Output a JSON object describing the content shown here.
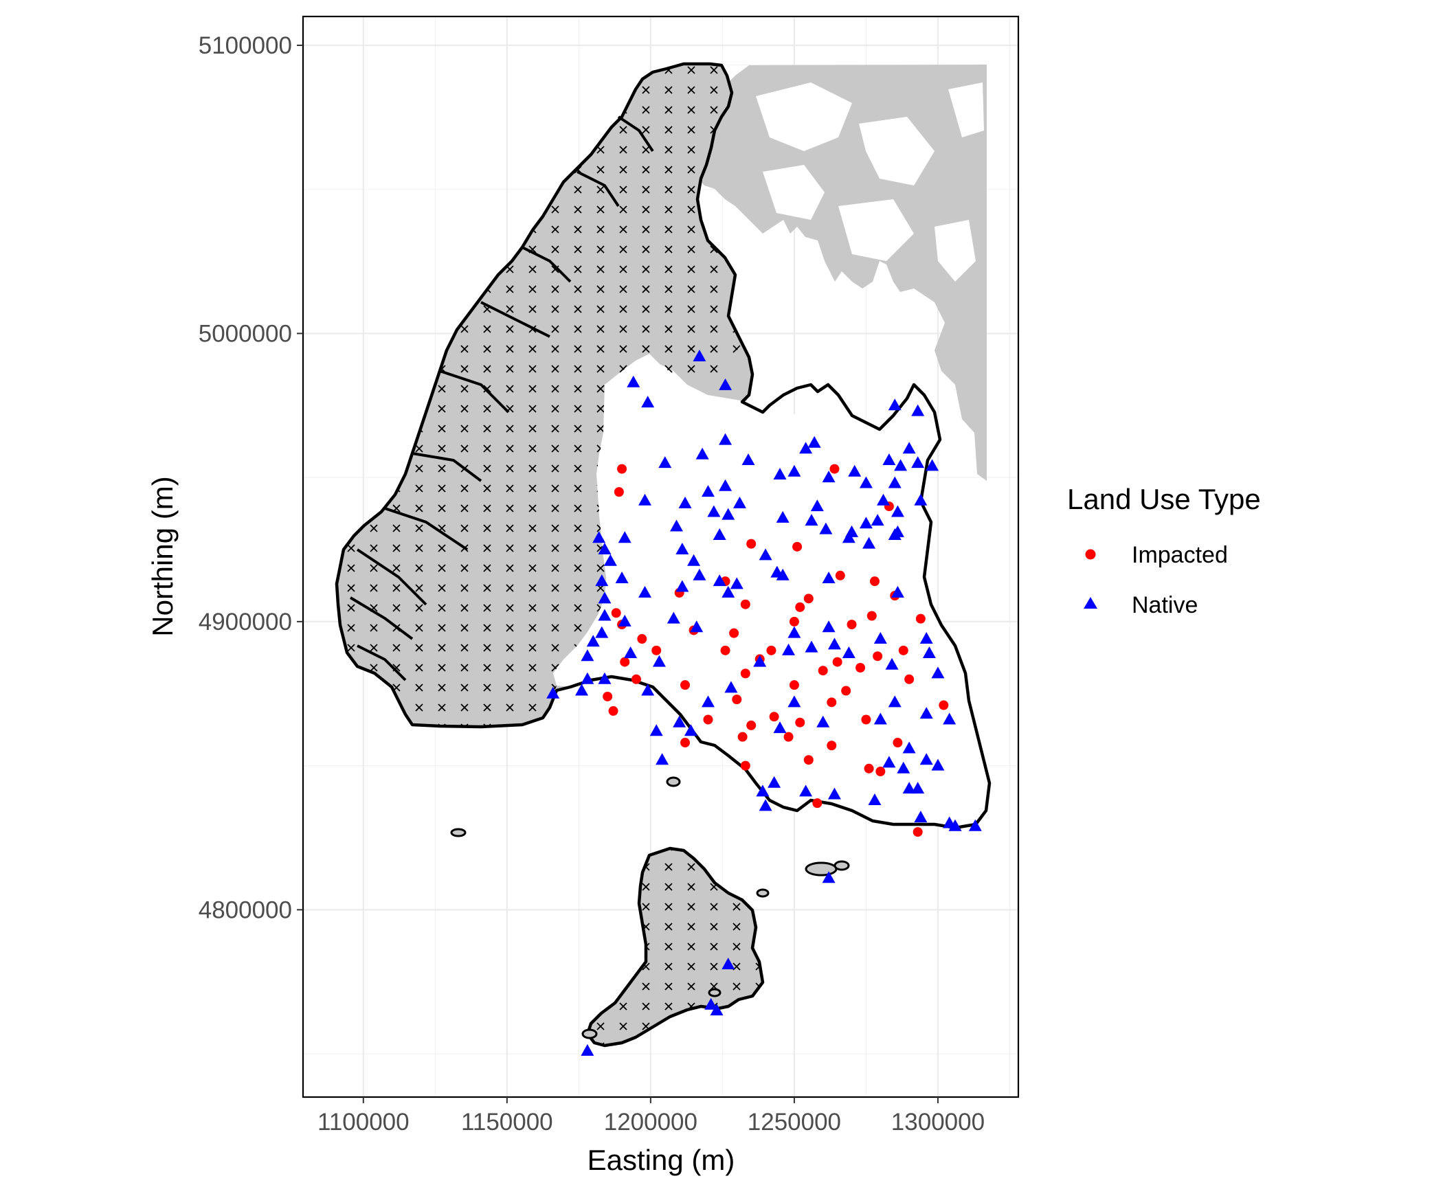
{
  "chart_data": {
    "type": "scatter",
    "xlabel": "Easting (m)",
    "ylabel": "Northing (m)",
    "xlim": [
      1079000,
      1328000
    ],
    "ylim": [
      4735000,
      5110000
    ],
    "x_ticks": [
      1100000,
      1150000,
      1200000,
      1250000,
      1300000
    ],
    "y_ticks": [
      4800000,
      4900000,
      5000000,
      5100000
    ],
    "x_tick_labels": [
      "1100000",
      "1150000",
      "1200000",
      "1250000",
      "1300000"
    ],
    "y_tick_labels": [
      "4800000",
      "4900000",
      "5000000",
      "5100000"
    ],
    "grid": true,
    "legend": {
      "title": "Land Use Type",
      "position": "right",
      "entries": [
        {
          "label": "Impacted",
          "shape": "circle",
          "color": "#ff0000"
        },
        {
          "label": "Native",
          "shape": "triangle",
          "color": "#0000ff"
        }
      ]
    },
    "colors": {
      "impacted": "#ff0000",
      "native": "#0000ff",
      "land": "#c8c8c8",
      "border": "#000000",
      "hatch": "#000000"
    },
    "series": [
      {
        "name": "Impacted",
        "points": [
          [
            1190000,
            4953000
          ],
          [
            1189000,
            4945000
          ],
          [
            1264000,
            4953000
          ],
          [
            1283000,
            4940000
          ],
          [
            1235000,
            4927000
          ],
          [
            1251000,
            4926000
          ],
          [
            1266000,
            4916000
          ],
          [
            1278000,
            4914000
          ],
          [
            1226000,
            4914000
          ],
          [
            1210000,
            4910000
          ],
          [
            1255000,
            4908000
          ],
          [
            1285000,
            4909000
          ],
          [
            1252000,
            4905000
          ],
          [
            1233000,
            4906000
          ],
          [
            1277000,
            4902000
          ],
          [
            1294000,
            4901000
          ],
          [
            1188000,
            4903000
          ],
          [
            1190000,
            4899000
          ],
          [
            1250000,
            4900000
          ],
          [
            1215000,
            4897000
          ],
          [
            1229000,
            4896000
          ],
          [
            1270000,
            4899000
          ],
          [
            1197000,
            4894000
          ],
          [
            1202000,
            4890000
          ],
          [
            1191000,
            4886000
          ],
          [
            1226000,
            4890000
          ],
          [
            1242000,
            4890000
          ],
          [
            1265000,
            4886000
          ],
          [
            1279000,
            4888000
          ],
          [
            1288000,
            4890000
          ],
          [
            1238000,
            4887000
          ],
          [
            1260000,
            4883000
          ],
          [
            1273000,
            4884000
          ],
          [
            1195000,
            4880000
          ],
          [
            1212000,
            4878000
          ],
          [
            1233000,
            4882000
          ],
          [
            1250000,
            4878000
          ],
          [
            1290000,
            4880000
          ],
          [
            1263000,
            4872000
          ],
          [
            1268000,
            4876000
          ],
          [
            1185000,
            4874000
          ],
          [
            1230000,
            4873000
          ],
          [
            1302000,
            4871000
          ],
          [
            1243000,
            4867000
          ],
          [
            1252000,
            4865000
          ],
          [
            1275000,
            4866000
          ],
          [
            1220000,
            4866000
          ],
          [
            1235000,
            4864000
          ],
          [
            1248000,
            4860000
          ],
          [
            1263000,
            4857000
          ],
          [
            1286000,
            4858000
          ],
          [
            1212000,
            4858000
          ],
          [
            1232000,
            4860000
          ],
          [
            1255000,
            4852000
          ],
          [
            1233000,
            4850000
          ],
          [
            1276000,
            4849000
          ],
          [
            1280000,
            4848000
          ],
          [
            1258000,
            4837000
          ],
          [
            1293000,
            4827000
          ],
          [
            1187000,
            4869000
          ]
        ]
      },
      {
        "name": "Native",
        "points": [
          [
            1194000,
            4983000
          ],
          [
            1217000,
            4992000
          ],
          [
            1226000,
            4982000
          ],
          [
            1199000,
            4976000
          ],
          [
            1226000,
            4963000
          ],
          [
            1254000,
            4960000
          ],
          [
            1257000,
            4962000
          ],
          [
            1285000,
            4975000
          ],
          [
            1293000,
            4973000
          ],
          [
            1290000,
            4960000
          ],
          [
            1293000,
            4955000
          ],
          [
            1283000,
            4956000
          ],
          [
            1205000,
            4955000
          ],
          [
            1218000,
            4958000
          ],
          [
            1234000,
            4956000
          ],
          [
            1220000,
            4945000
          ],
          [
            1226000,
            4947000
          ],
          [
            1250000,
            4952000
          ],
          [
            1245000,
            4951000
          ],
          [
            1262000,
            4950000
          ],
          [
            1271000,
            4952000
          ],
          [
            1275000,
            4948000
          ],
          [
            1287000,
            4954000
          ],
          [
            1285000,
            4948000
          ],
          [
            1298000,
            4954000
          ],
          [
            1198000,
            4942000
          ],
          [
            1212000,
            4941000
          ],
          [
            1222000,
            4938000
          ],
          [
            1227000,
            4937000
          ],
          [
            1231000,
            4941000
          ],
          [
            1246000,
            4936000
          ],
          [
            1258000,
            4940000
          ],
          [
            1269000,
            4929000
          ],
          [
            1281000,
            4942000
          ],
          [
            1294000,
            4942000
          ],
          [
            1286000,
            4938000
          ],
          [
            1279000,
            4935000
          ],
          [
            1286000,
            4931000
          ],
          [
            1182000,
            4929000
          ],
          [
            1191000,
            4929000
          ],
          [
            1209000,
            4933000
          ],
          [
            1224000,
            4930000
          ],
          [
            1240000,
            4923000
          ],
          [
            1256000,
            4935000
          ],
          [
            1261000,
            4932000
          ],
          [
            1270000,
            4931000
          ],
          [
            1275000,
            4934000
          ],
          [
            1285000,
            4930000
          ],
          [
            1184000,
            4925000
          ],
          [
            1186000,
            4921000
          ],
          [
            1211000,
            4925000
          ],
          [
            1215000,
            4921000
          ],
          [
            1217000,
            4916000
          ],
          [
            1224000,
            4914000
          ],
          [
            1230000,
            4913000
          ],
          [
            1244000,
            4917000
          ],
          [
            1276000,
            4927000
          ],
          [
            1183000,
            4914000
          ],
          [
            1184000,
            4908000
          ],
          [
            1190000,
            4915000
          ],
          [
            1198000,
            4910000
          ],
          [
            1211000,
            4912000
          ],
          [
            1227000,
            4910000
          ],
          [
            1246000,
            4916000
          ],
          [
            1262000,
            4915000
          ],
          [
            1286000,
            4910000
          ],
          [
            1184000,
            4902000
          ],
          [
            1191000,
            4900000
          ],
          [
            1208000,
            4901000
          ],
          [
            1216000,
            4898000
          ],
          [
            1250000,
            4896000
          ],
          [
            1262000,
            4898000
          ],
          [
            1269000,
            4889000
          ],
          [
            1280000,
            4894000
          ],
          [
            1296000,
            4894000
          ],
          [
            1300000,
            4882000
          ],
          [
            1183000,
            4896000
          ],
          [
            1180000,
            4893000
          ],
          [
            1178000,
            4888000
          ],
          [
            1184000,
            4880000
          ],
          [
            1193000,
            4889000
          ],
          [
            1203000,
            4886000
          ],
          [
            1238000,
            4886000
          ],
          [
            1248000,
            4890000
          ],
          [
            1256000,
            4891000
          ],
          [
            1264000,
            4892000
          ],
          [
            1284000,
            4885000
          ],
          [
            1297000,
            4889000
          ],
          [
            1178000,
            4880000
          ],
          [
            1176000,
            4876000
          ],
          [
            1166000,
            4875000
          ],
          [
            1199000,
            4876000
          ],
          [
            1228000,
            4877000
          ],
          [
            1220000,
            4872000
          ],
          [
            1250000,
            4872000
          ],
          [
            1285000,
            4872000
          ],
          [
            1296000,
            4868000
          ],
          [
            1304000,
            4866000
          ],
          [
            1210000,
            4865000
          ],
          [
            1214000,
            4862000
          ],
          [
            1202000,
            4862000
          ],
          [
            1245000,
            4863000
          ],
          [
            1260000,
            4865000
          ],
          [
            1280000,
            4866000
          ],
          [
            1290000,
            4856000
          ],
          [
            1296000,
            4852000
          ],
          [
            1300000,
            4850000
          ],
          [
            1204000,
            4852000
          ],
          [
            1243000,
            4844000
          ],
          [
            1254000,
            4841000
          ],
          [
            1264000,
            4840000
          ],
          [
            1278000,
            4838000
          ],
          [
            1283000,
            4851000
          ],
          [
            1288000,
            4849000
          ],
          [
            1293000,
            4842000
          ],
          [
            1294000,
            4832000
          ],
          [
            1240000,
            4836000
          ],
          [
            1239000,
            4841000
          ],
          [
            1306000,
            4829000
          ],
          [
            1313000,
            4829000
          ],
          [
            1290000,
            4842000
          ],
          [
            1262000,
            4811000
          ],
          [
            1227000,
            4781000
          ],
          [
            1221000,
            4767000
          ],
          [
            1223000,
            4765000
          ],
          [
            1178000,
            4751000
          ],
          [
            1304000,
            4830000
          ]
        ]
      }
    ]
  }
}
